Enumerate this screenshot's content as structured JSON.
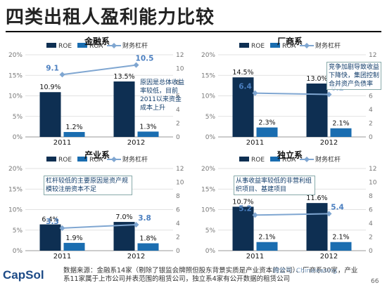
{
  "page_title": "四类出租人盈利能力比较",
  "legend": {
    "roe": "ROE",
    "roa": "ROA",
    "lev": "财务杠杆"
  },
  "colors": {
    "roe": "#0e2f52",
    "roa": "#1a6db0",
    "lev": "#7fa6d1",
    "text_accent": "#123d6b"
  },
  "charts": [
    {
      "title": "金融系",
      "note": "原因是总体收益率较低，目前2011以来资金成本上升",
      "x": [
        "2011",
        "2012"
      ],
      "roe": [
        10.9,
        13.5
      ],
      "roa": [
        1.2,
        1.3
      ],
      "lev": [
        9.1,
        10.5
      ],
      "left_ticks": [
        "0%",
        "5%",
        "10%",
        "15%",
        "20%"
      ],
      "right_ticks": [
        "0",
        "2",
        "4",
        "6",
        "8",
        "10",
        "12"
      ]
    },
    {
      "title": "厂商系",
      "note": "竞争加剧导致收益下降快，集团控制合并资产负债率",
      "x": [
        "2011",
        "2012"
      ],
      "roe": [
        14.5,
        13.0
      ],
      "roa": [
        2.3,
        2.1
      ],
      "lev": [
        6.4,
        6.2
      ],
      "left_ticks": [
        "0%",
        "5%",
        "10%",
        "15%",
        "20%"
      ],
      "right_ticks": [
        "0",
        "2",
        "4",
        "6",
        "8",
        "10",
        "12"
      ]
    },
    {
      "title": "产业系",
      "note": "杠杆较低的主要原因是资产规模较注册资本不足",
      "x": [
        "2011",
        "2012"
      ],
      "roe": [
        6.4,
        7.0
      ],
      "roa": [
        1.9,
        1.8
      ],
      "lev": [
        3.3,
        3.8
      ],
      "left_ticks": [
        "0%",
        "5%",
        "10%",
        "15%",
        "20%"
      ],
      "right_ticks": [
        "0",
        "2",
        "4",
        "6",
        "8",
        "10",
        "12"
      ]
    },
    {
      "title": "独立系",
      "note": "从事收益率较低的非营利组织项目、基建项目",
      "x": [
        "2011",
        "2012"
      ],
      "roe": [
        10.7,
        11.6
      ],
      "roa": [
        2.1,
        2.1
      ],
      "lev": [
        5.2,
        5.4
      ],
      "left_ticks": [
        "0%",
        "5%",
        "10%",
        "15%",
        "20%"
      ],
      "right_ticks": [
        "0",
        "2",
        "4",
        "6",
        "8",
        "10",
        "12"
      ]
    }
  ],
  "footer": {
    "logo": "CapSol",
    "source": "数据来源：金融系14家（剔除了银监会牌照但股东背景实质是产业资本的公司）、厂商系30家，产业系11家属于上市公司并表范围的租赁公司，独立系4家有公开数据的租赁公司",
    "page": "66",
    "watermark": "微信号: Chinaleasing"
  }
}
